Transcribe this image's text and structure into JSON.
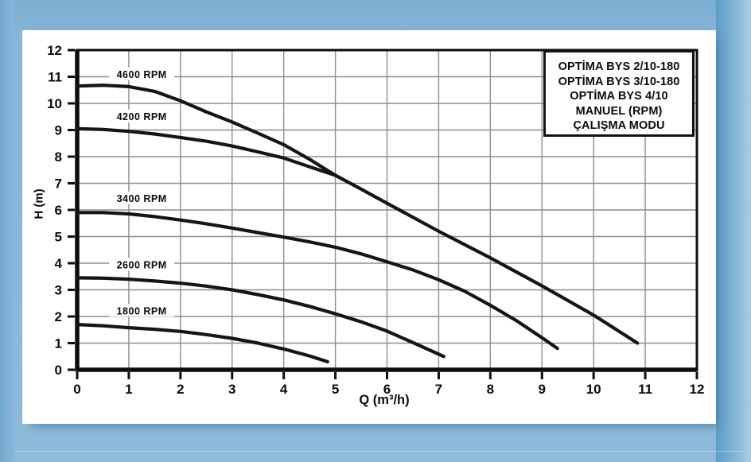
{
  "page": {
    "background_color": "#8ab7d9",
    "right_strip_color": "#6ea7cc",
    "panel_color": "#ffffff"
  },
  "legend_box": {
    "lines": [
      "OPTİMA BYS 2/10-180",
      "OPTİMA BYS 3/10-180",
      "OPTİMA BYS 4/10",
      "MANUEL (RPM)",
      "ÇALIŞMA MODU"
    ]
  },
  "chart_data": {
    "type": "line",
    "title": "",
    "xlabel": "Q (m³/h)",
    "ylabel": "H (m)",
    "xlim": [
      0,
      12
    ],
    "ylim": [
      0,
      12
    ],
    "xticks": [
      0,
      1,
      2,
      3,
      4,
      5,
      6,
      7,
      8,
      9,
      10,
      11,
      12
    ],
    "yticks": [
      0,
      1,
      2,
      3,
      4,
      5,
      6,
      7,
      8,
      9,
      10,
      11,
      12
    ],
    "grid": true,
    "legend_position": "top-right",
    "colors": {
      "curve": "#151515",
      "grid": "#8e8e8e",
      "axis": "#0d0d0d",
      "text": "#0b0b0b"
    },
    "series": [
      {
        "name": "4600 RPM",
        "label_pos": [
          1.25,
          11.08
        ],
        "points": [
          [
            0,
            10.65
          ],
          [
            0.5,
            10.68
          ],
          [
            1,
            10.63
          ],
          [
            1.5,
            10.45
          ],
          [
            2,
            10.1
          ],
          [
            2.5,
            9.68
          ],
          [
            3,
            9.3
          ],
          [
            3.5,
            8.88
          ],
          [
            4,
            8.45
          ],
          [
            4.5,
            7.9
          ],
          [
            5,
            7.3
          ],
          [
            5.5,
            6.78
          ],
          [
            6,
            6.25
          ],
          [
            7,
            5.2
          ],
          [
            8,
            4.2
          ],
          [
            9,
            3.15
          ],
          [
            10,
            2.05
          ],
          [
            10.85,
            1.0
          ]
        ]
      },
      {
        "name": "4200 RPM",
        "label_pos": [
          1.25,
          9.5
        ],
        "points": [
          [
            0,
            9.05
          ],
          [
            0.5,
            9.02
          ],
          [
            1,
            8.95
          ],
          [
            1.5,
            8.85
          ],
          [
            2,
            8.72
          ],
          [
            2.5,
            8.58
          ],
          [
            3,
            8.4
          ],
          [
            3.5,
            8.18
          ],
          [
            4,
            7.95
          ],
          [
            4.5,
            7.62
          ],
          [
            5,
            7.3
          ]
        ]
      },
      {
        "name": "3400 RPM",
        "label_pos": [
          1.25,
          6.42
        ],
        "points": [
          [
            0,
            5.9
          ],
          [
            0.5,
            5.9
          ],
          [
            1,
            5.85
          ],
          [
            1.5,
            5.75
          ],
          [
            2,
            5.62
          ],
          [
            2.5,
            5.48
          ],
          [
            3,
            5.32
          ],
          [
            3.5,
            5.15
          ],
          [
            4,
            4.98
          ],
          [
            4.5,
            4.8
          ],
          [
            5,
            4.6
          ],
          [
            5.5,
            4.35
          ],
          [
            6,
            4.05
          ],
          [
            6.5,
            3.75
          ],
          [
            7,
            3.38
          ],
          [
            7.5,
            2.95
          ],
          [
            8,
            2.42
          ],
          [
            8.5,
            1.85
          ],
          [
            9,
            1.2
          ],
          [
            9.3,
            0.8
          ]
        ]
      },
      {
        "name": "2600 RPM",
        "label_pos": [
          1.25,
          3.93
        ],
        "points": [
          [
            0,
            3.45
          ],
          [
            0.5,
            3.44
          ],
          [
            1,
            3.4
          ],
          [
            1.5,
            3.33
          ],
          [
            2,
            3.25
          ],
          [
            2.5,
            3.14
          ],
          [
            3,
            3.0
          ],
          [
            3.5,
            2.82
          ],
          [
            4,
            2.62
          ],
          [
            4.5,
            2.38
          ],
          [
            5,
            2.1
          ],
          [
            5.5,
            1.8
          ],
          [
            6,
            1.45
          ],
          [
            6.5,
            1.02
          ],
          [
            7.1,
            0.5
          ]
        ]
      },
      {
        "name": "1800 RPM",
        "label_pos": [
          1.25,
          2.2
        ],
        "points": [
          [
            0,
            1.7
          ],
          [
            0.5,
            1.65
          ],
          [
            1,
            1.58
          ],
          [
            1.5,
            1.52
          ],
          [
            2,
            1.44
          ],
          [
            2.5,
            1.32
          ],
          [
            3,
            1.18
          ],
          [
            3.5,
            1.0
          ],
          [
            4,
            0.78
          ],
          [
            4.5,
            0.52
          ],
          [
            4.85,
            0.3
          ]
        ]
      }
    ]
  }
}
